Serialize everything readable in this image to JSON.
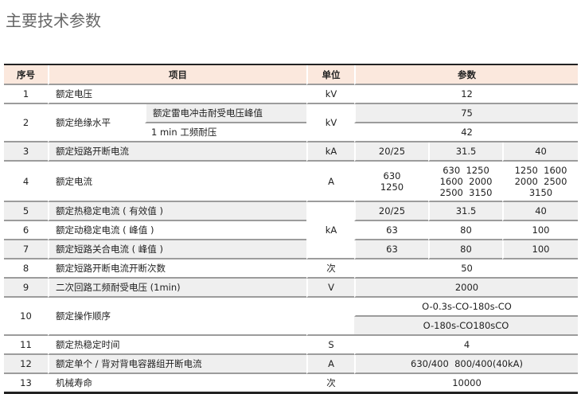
{
  "title": "主要技术参数",
  "headers": {
    "no": "序号",
    "item": "项目",
    "unit": "单位",
    "params": "参数"
  },
  "rows": {
    "r1": {
      "no": "1",
      "item": "额定电压",
      "unit": "kV",
      "v": "12"
    },
    "r2": {
      "no": "2",
      "item": "额定绝缘水平",
      "sub1": "额定雷电冲击耐受电压峰值",
      "v1": "75",
      "sub2": "1 min 工频耐压",
      "v2": "42",
      "unit": "kV"
    },
    "r3": {
      "no": "3",
      "item": "额定短路开断电流",
      "unit": "kA",
      "v": [
        "20/25",
        "31.5",
        "40"
      ]
    },
    "r4": {
      "no": "4",
      "item": "额定电流",
      "unit": "A",
      "v": [
        [
          "630",
          "1250"
        ],
        [
          "630  1250",
          "1600  2000",
          "2500  3150"
        ],
        [
          "1250  1600",
          "2000  2500",
          "3150"
        ]
      ]
    },
    "r5": {
      "no": "5",
      "item": "额定热稳定电流 ( 有效值 )",
      "v": [
        "20/25",
        "31.5",
        "40"
      ]
    },
    "r6": {
      "no": "6",
      "item": "额定动稳定电流 ( 峰值 )",
      "v": [
        "63",
        "80",
        "100"
      ]
    },
    "r7": {
      "no": "7",
      "item": "额定短路关合电流 ( 峰值 )",
      "v": [
        "63",
        "80",
        "100"
      ]
    },
    "unit567": "kA",
    "r8": {
      "no": "8",
      "item": "额定短路开断电流开断次数",
      "unit": "次",
      "v": "50"
    },
    "r9": {
      "no": "9",
      "item": "二次回路工频耐受电压 (1min)",
      "unit": "V",
      "v": "2000"
    },
    "r10": {
      "no": "10",
      "item": "额定操作顺序",
      "v1": "O-0.3s-CO-180s-CO",
      "v2": "O-180s-CO180sCO"
    },
    "r11": {
      "no": "11",
      "item": "额定热稳定时间",
      "unit": "S",
      "v": "4"
    },
    "r12": {
      "no": "12",
      "item": "额定单个 / 背对背电容器组开断电流",
      "unit": "A",
      "v": "630/400  800/400(40kA)"
    },
    "r13": {
      "no": "13",
      "item": "机械寿命",
      "unit": "次",
      "v": "10000"
    }
  },
  "colors": {
    "header_bg": "#fbe8dd",
    "stripe": "#efefef",
    "rule": "#9c9c9c"
  }
}
